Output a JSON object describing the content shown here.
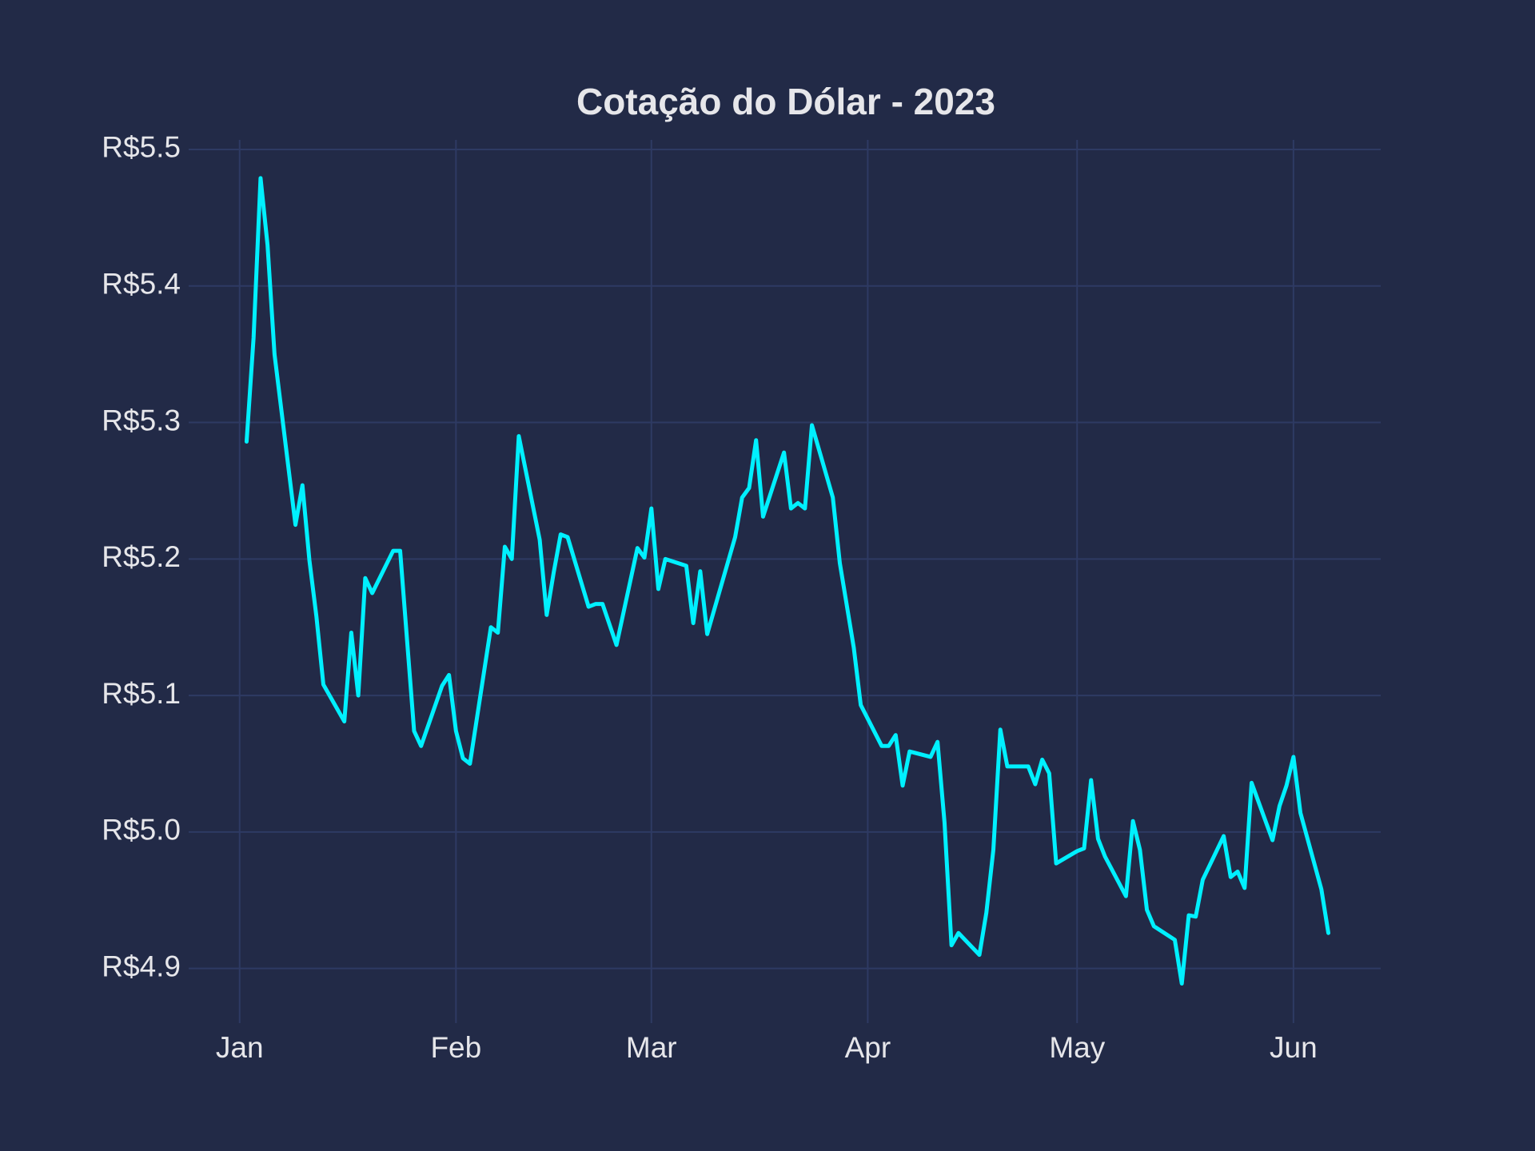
{
  "chart_data": {
    "type": "line",
    "title": "Cotação do Dólar - 2023",
    "color": "#00f0ff",
    "grid": true,
    "x": [
      1,
      2,
      3,
      4,
      5,
      8,
      9,
      10,
      11,
      12,
      15,
      16,
      17,
      18,
      19,
      22,
      23,
      25,
      26,
      29,
      30,
      31,
      32,
      33,
      36,
      37,
      38,
      39,
      40,
      43,
      44,
      45,
      46,
      47,
      50,
      51,
      52,
      54,
      57,
      58,
      59,
      60,
      61,
      64,
      65,
      66,
      67,
      71,
      72,
      73,
      74,
      75,
      78,
      79,
      80,
      81,
      82,
      85,
      86,
      88,
      89,
      92,
      93,
      94,
      95,
      96,
      99,
      100,
      101,
      102,
      103,
      106,
      107,
      108,
      109,
      110,
      113,
      114,
      115,
      116,
      117,
      120,
      121,
      122,
      123,
      124,
      127,
      128,
      129,
      130,
      131,
      134,
      135,
      136,
      137,
      138,
      141,
      142,
      143,
      144,
      145,
      148,
      149,
      150,
      151,
      152,
      155,
      156
    ],
    "values": [
      5.286,
      5.362,
      5.479,
      5.43,
      5.35,
      5.225,
      5.254,
      5.199,
      5.158,
      5.108,
      5.081,
      5.146,
      5.1,
      5.186,
      5.175,
      5.206,
      5.206,
      5.074,
      5.063,
      5.107,
      5.115,
      5.074,
      5.054,
      5.05,
      5.15,
      5.146,
      5.209,
      5.2,
      5.29,
      5.214,
      5.159,
      5.19,
      5.218,
      5.216,
      5.165,
      5.167,
      5.167,
      5.137,
      5.208,
      5.201,
      5.237,
      5.178,
      5.2,
      5.195,
      5.153,
      5.191,
      5.145,
      5.216,
      5.245,
      5.252,
      5.287,
      5.231,
      5.278,
      5.237,
      5.241,
      5.237,
      5.298,
      5.245,
      5.197,
      5.135,
      5.093,
      5.063,
      5.063,
      5.071,
      5.034,
      5.059,
      5.055,
      5.066,
      5.007,
      4.917,
      4.926,
      4.91,
      4.941,
      4.987,
      5.075,
      5.048,
      5.048,
      5.035,
      5.053,
      5.043,
      4.977,
      4.986,
      4.988,
      5.038,
      4.995,
      4.982,
      4.953,
      5.008,
      4.987,
      4.943,
      4.931,
      4.921,
      4.889,
      4.939,
      4.938,
      4.965,
      4.997,
      4.967,
      4.971,
      4.959,
      5.036,
      4.994,
      5.019,
      5.034,
      5.055,
      5.014,
      4.958,
      4.926
    ],
    "xlim": [
      -7.3,
      163.5
    ],
    "xticks": [
      {
        "value": 0,
        "label": "Jan"
      },
      {
        "value": 31,
        "label": "Feb"
      },
      {
        "value": 59,
        "label": "Mar"
      },
      {
        "value": 90,
        "label": "Apr"
      },
      {
        "value": 120,
        "label": "May"
      },
      {
        "value": 151,
        "label": "Jun"
      }
    ],
    "ylim": [
      4.86,
      5.507
    ],
    "yticks": [
      {
        "value": 4.9,
        "label": "R$4.9"
      },
      {
        "value": 5.0,
        "label": "R$5.0"
      },
      {
        "value": 5.1,
        "label": "R$5.1"
      },
      {
        "value": 5.2,
        "label": "R$5.2"
      },
      {
        "value": 5.3,
        "label": "R$5.3"
      },
      {
        "value": 5.4,
        "label": "R$5.4"
      },
      {
        "value": 5.5,
        "label": "R$5.5"
      }
    ]
  }
}
